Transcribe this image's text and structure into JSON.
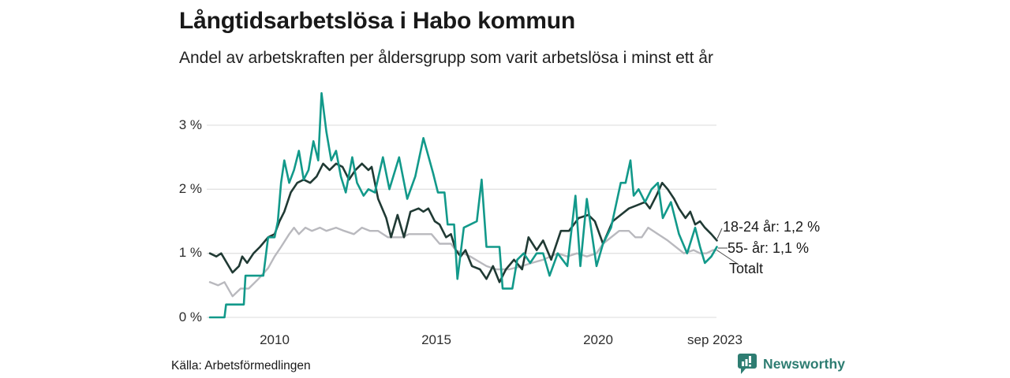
{
  "header": {
    "title": "Långtidsarbetslösa i Habo kommun",
    "subtitle": "Andel av arbetskraften per åldersgrupp som varit arbetslösa i minst ett år"
  },
  "theme": {
    "grid_color": "#e2e2e2",
    "leader_color": "#4a4a4a",
    "brand_color": "#2e7d72"
  },
  "chart_data": {
    "type": "line",
    "title": "Långtidsarbetslösa i Habo kommun",
    "subtitle": "Andel av arbetskraften per åldersgrupp som varit arbetslösa i minst ett år",
    "grid": true,
    "legend_position": "end-of-line-labels",
    "x_axis": {
      "unit": "year (monthly data)",
      "range_years": [
        2008.0,
        2023.75
      ],
      "tick_labels": [
        "2010",
        "2015",
        "2020",
        "sep 2023"
      ],
      "tick_years": [
        2010,
        2015,
        2020,
        2023.67
      ]
    },
    "y_axis": {
      "unit": "%",
      "range": [
        0,
        3.6
      ],
      "tick_labels": [
        "0 %",
        "1 %",
        "2 %",
        "3 %"
      ],
      "tick_values": [
        0,
        1,
        2,
        3
      ]
    },
    "series": [
      {
        "name": "18-24 år",
        "end_label": "18-24 år: 1,2 %",
        "end_value_pct": 1.2,
        "color": "#203a34",
        "width": 2.6,
        "z": 1,
        "points": [
          [
            2008.0,
            1.0
          ],
          [
            2008.2,
            0.95
          ],
          [
            2008.35,
            1.0
          ],
          [
            2008.7,
            0.7
          ],
          [
            2008.9,
            0.8
          ],
          [
            2009.0,
            0.95
          ],
          [
            2009.15,
            0.85
          ],
          [
            2009.35,
            1.0
          ],
          [
            2009.55,
            1.1
          ],
          [
            2009.8,
            1.25
          ],
          [
            2010.0,
            1.3
          ],
          [
            2010.15,
            1.5
          ],
          [
            2010.3,
            1.65
          ],
          [
            2010.5,
            1.95
          ],
          [
            2010.7,
            2.1
          ],
          [
            2010.9,
            2.15
          ],
          [
            2011.1,
            2.1
          ],
          [
            2011.3,
            2.2
          ],
          [
            2011.5,
            2.4
          ],
          [
            2011.7,
            2.3
          ],
          [
            2011.9,
            2.4
          ],
          [
            2012.1,
            2.35
          ],
          [
            2012.3,
            2.15
          ],
          [
            2012.5,
            2.3
          ],
          [
            2012.7,
            2.4
          ],
          [
            2012.9,
            2.3
          ],
          [
            2013.0,
            2.35
          ],
          [
            2013.2,
            1.85
          ],
          [
            2013.45,
            1.55
          ],
          [
            2013.6,
            1.25
          ],
          [
            2013.8,
            1.6
          ],
          [
            2014.0,
            1.25
          ],
          [
            2014.2,
            1.65
          ],
          [
            2014.45,
            1.7
          ],
          [
            2014.6,
            1.65
          ],
          [
            2014.75,
            1.7
          ],
          [
            2014.95,
            1.5
          ],
          [
            2015.1,
            1.45
          ],
          [
            2015.3,
            1.25
          ],
          [
            2015.45,
            1.3
          ],
          [
            2015.6,
            1.05
          ],
          [
            2015.75,
            0.95
          ],
          [
            2015.9,
            1.05
          ],
          [
            2016.1,
            0.8
          ],
          [
            2016.35,
            0.75
          ],
          [
            2016.55,
            0.6
          ],
          [
            2016.75,
            0.8
          ],
          [
            2016.95,
            0.55
          ],
          [
            2017.15,
            0.75
          ],
          [
            2017.4,
            0.9
          ],
          [
            2017.65,
            0.75
          ],
          [
            2017.85,
            1.25
          ],
          [
            2018.1,
            1.05
          ],
          [
            2018.3,
            1.2
          ],
          [
            2018.55,
            0.9
          ],
          [
            2018.85,
            1.35
          ],
          [
            2019.1,
            1.35
          ],
          [
            2019.4,
            1.55
          ],
          [
            2019.7,
            1.6
          ],
          [
            2019.9,
            1.5
          ],
          [
            2020.15,
            1.15
          ],
          [
            2020.45,
            1.5
          ],
          [
            2020.7,
            1.6
          ],
          [
            2020.95,
            1.7
          ],
          [
            2021.2,
            1.75
          ],
          [
            2021.45,
            1.8
          ],
          [
            2021.6,
            1.7
          ],
          [
            2021.8,
            1.9
          ],
          [
            2021.98,
            2.1
          ],
          [
            2022.15,
            2.0
          ],
          [
            2022.35,
            1.85
          ],
          [
            2022.5,
            1.7
          ],
          [
            2022.7,
            1.55
          ],
          [
            2022.85,
            1.65
          ],
          [
            2023.0,
            1.45
          ],
          [
            2023.15,
            1.5
          ],
          [
            2023.3,
            1.4
          ],
          [
            2023.5,
            1.3
          ],
          [
            2023.67,
            1.2
          ]
        ]
      },
      {
        "name": "55- år",
        "end_label": "55- år: 1,1 %",
        "end_value_pct": 1.1,
        "color": "#12998a",
        "width": 2.6,
        "z": 2,
        "points": [
          [
            2008.0,
            0.0
          ],
          [
            2008.45,
            0.0
          ],
          [
            2008.5,
            0.2
          ],
          [
            2009.05,
            0.2
          ],
          [
            2009.1,
            0.65
          ],
          [
            2009.65,
            0.65
          ],
          [
            2009.8,
            1.25
          ],
          [
            2010.0,
            1.25
          ],
          [
            2010.1,
            1.5
          ],
          [
            2010.2,
            2.1
          ],
          [
            2010.3,
            2.45
          ],
          [
            2010.45,
            2.1
          ],
          [
            2010.6,
            2.3
          ],
          [
            2010.75,
            2.6
          ],
          [
            2010.9,
            2.15
          ],
          [
            2011.05,
            2.3
          ],
          [
            2011.2,
            2.75
          ],
          [
            2011.35,
            2.45
          ],
          [
            2011.45,
            3.5
          ],
          [
            2011.6,
            2.9
          ],
          [
            2011.75,
            2.45
          ],
          [
            2011.9,
            2.6
          ],
          [
            2012.05,
            2.2
          ],
          [
            2012.2,
            1.95
          ],
          [
            2012.4,
            2.5
          ],
          [
            2012.55,
            2.1
          ],
          [
            2012.75,
            1.9
          ],
          [
            2012.9,
            2.0
          ],
          [
            2013.1,
            1.95
          ],
          [
            2013.35,
            2.5
          ],
          [
            2013.55,
            2.0
          ],
          [
            2013.85,
            2.5
          ],
          [
            2014.1,
            1.85
          ],
          [
            2014.35,
            2.2
          ],
          [
            2014.6,
            2.8
          ],
          [
            2014.9,
            2.25
          ],
          [
            2015.05,
            1.95
          ],
          [
            2015.25,
            1.95
          ],
          [
            2015.35,
            1.45
          ],
          [
            2015.55,
            1.45
          ],
          [
            2015.65,
            0.6
          ],
          [
            2015.85,
            1.4
          ],
          [
            2016.05,
            1.45
          ],
          [
            2016.25,
            1.5
          ],
          [
            2016.4,
            2.15
          ],
          [
            2016.55,
            1.1
          ],
          [
            2016.95,
            1.1
          ],
          [
            2017.05,
            0.45
          ],
          [
            2017.35,
            0.45
          ],
          [
            2017.5,
            0.9
          ],
          [
            2017.7,
            1.0
          ],
          [
            2017.9,
            0.85
          ],
          [
            2018.1,
            1.0
          ],
          [
            2018.3,
            1.0
          ],
          [
            2018.5,
            0.65
          ],
          [
            2018.75,
            1.0
          ],
          [
            2019.05,
            0.8
          ],
          [
            2019.3,
            1.9
          ],
          [
            2019.45,
            0.8
          ],
          [
            2019.65,
            1.85
          ],
          [
            2019.95,
            0.8
          ],
          [
            2020.15,
            1.15
          ],
          [
            2020.4,
            1.4
          ],
          [
            2020.7,
            2.1
          ],
          [
            2020.85,
            2.1
          ],
          [
            2021.0,
            2.45
          ],
          [
            2021.1,
            1.9
          ],
          [
            2021.25,
            2.0
          ],
          [
            2021.45,
            1.8
          ],
          [
            2021.65,
            2.0
          ],
          [
            2021.85,
            2.1
          ],
          [
            2022.0,
            1.55
          ],
          [
            2022.25,
            1.8
          ],
          [
            2022.5,
            1.3
          ],
          [
            2022.75,
            1.0
          ],
          [
            2023.0,
            1.4
          ],
          [
            2023.15,
            1.1
          ],
          [
            2023.3,
            0.85
          ],
          [
            2023.5,
            0.95
          ],
          [
            2023.67,
            1.1
          ]
        ]
      },
      {
        "name": "Totalt",
        "end_label": "Totalt",
        "end_value_pct": 1.05,
        "color": "#b9b9be",
        "width": 2.4,
        "z": 0,
        "points": [
          [
            2008.0,
            0.55
          ],
          [
            2008.25,
            0.5
          ],
          [
            2008.45,
            0.55
          ],
          [
            2008.7,
            0.33
          ],
          [
            2008.95,
            0.45
          ],
          [
            2009.2,
            0.45
          ],
          [
            2009.5,
            0.6
          ],
          [
            2009.8,
            0.77
          ],
          [
            2010.0,
            0.95
          ],
          [
            2010.2,
            1.1
          ],
          [
            2010.45,
            1.3
          ],
          [
            2010.6,
            1.4
          ],
          [
            2010.75,
            1.3
          ],
          [
            2010.95,
            1.4
          ],
          [
            2011.15,
            1.35
          ],
          [
            2011.4,
            1.4
          ],
          [
            2011.6,
            1.35
          ],
          [
            2011.9,
            1.4
          ],
          [
            2012.15,
            1.35
          ],
          [
            2012.45,
            1.3
          ],
          [
            2012.7,
            1.4
          ],
          [
            2012.95,
            1.35
          ],
          [
            2013.2,
            1.35
          ],
          [
            2013.5,
            1.25
          ],
          [
            2013.95,
            1.25
          ],
          [
            2014.15,
            1.3
          ],
          [
            2014.55,
            1.3
          ],
          [
            2014.85,
            1.3
          ],
          [
            2015.1,
            1.15
          ],
          [
            2015.45,
            1.15
          ],
          [
            2015.6,
            1.05
          ],
          [
            2016.05,
            0.95
          ],
          [
            2016.55,
            0.8
          ],
          [
            2016.85,
            0.75
          ],
          [
            2017.25,
            0.75
          ],
          [
            2017.65,
            0.8
          ],
          [
            2017.95,
            0.85
          ],
          [
            2018.3,
            0.9
          ],
          [
            2018.75,
            1.0
          ],
          [
            2019.05,
            0.95
          ],
          [
            2019.35,
            1.0
          ],
          [
            2019.65,
            0.95
          ],
          [
            2019.95,
            1.0
          ],
          [
            2020.15,
            1.15
          ],
          [
            2020.65,
            1.35
          ],
          [
            2020.95,
            1.35
          ],
          [
            2021.15,
            1.25
          ],
          [
            2021.35,
            1.25
          ],
          [
            2021.55,
            1.4
          ],
          [
            2021.85,
            1.3
          ],
          [
            2022.15,
            1.2
          ],
          [
            2022.65,
            1.0
          ],
          [
            2022.95,
            1.05
          ],
          [
            2023.15,
            1.0
          ],
          [
            2023.35,
            1.0
          ],
          [
            2023.55,
            1.05
          ],
          [
            2023.67,
            1.05
          ]
        ]
      }
    ]
  },
  "footer": {
    "source": "Källa: Arbetsförmedlingen",
    "brand": "Newsworthy"
  }
}
